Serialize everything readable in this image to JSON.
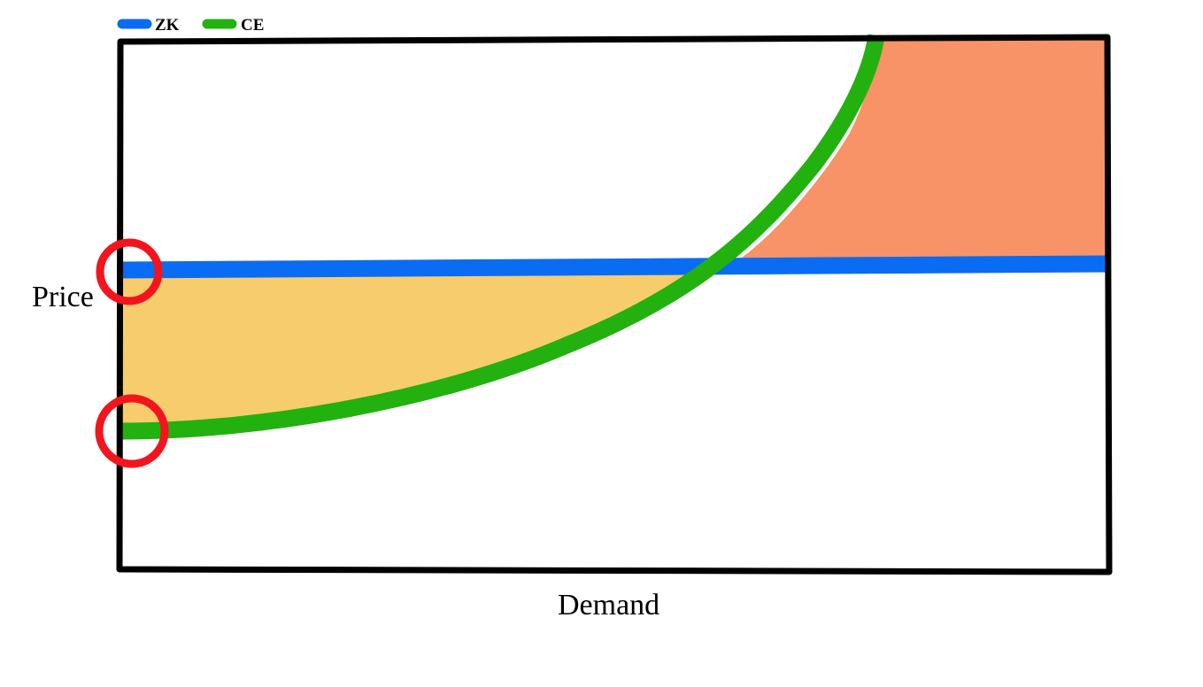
{
  "legend": [
    {
      "label": "ZK",
      "color": "#0a6cf2"
    },
    {
      "label": "CE",
      "color": "#22b10f"
    }
  ],
  "axes": {
    "x_label": "Demand",
    "y_label": "Price"
  },
  "regions": {
    "lower_fill_color": "#f7cc6c",
    "upper_fill_color": "#f89367"
  },
  "markers": {
    "color": "#f2151d",
    "count": 2
  },
  "frame_color": "#000000"
}
